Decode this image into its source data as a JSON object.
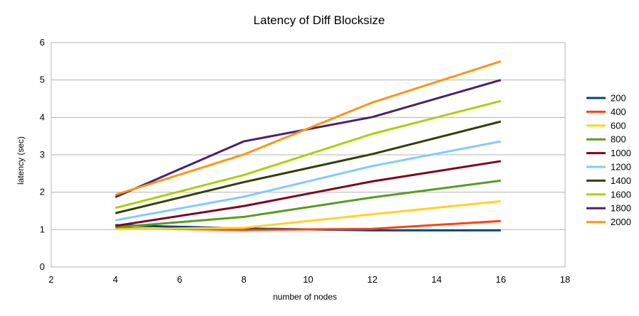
{
  "chart_data": {
    "type": "line",
    "title": "Latency of Diff Blocksize",
    "xlabel": "number of nodes",
    "ylabel": "latency (sec)",
    "xlim": [
      2,
      18
    ],
    "ylim": [
      0,
      6
    ],
    "x_ticks": [
      2,
      4,
      6,
      8,
      10,
      12,
      14,
      16,
      18
    ],
    "y_ticks": [
      0,
      1,
      2,
      3,
      4,
      5,
      6
    ],
    "grid": "horizontal",
    "legend_position": "right",
    "x": [
      4,
      8,
      12,
      16
    ],
    "series": [
      {
        "name": "200",
        "color": "#004586",
        "values": [
          1.12,
          1.03,
          0.98,
          0.98
        ]
      },
      {
        "name": "400",
        "color": "#ff420e",
        "values": [
          1.04,
          0.99,
          1.02,
          1.23
        ]
      },
      {
        "name": "600",
        "color": "#ffd320",
        "values": [
          1.01,
          1.05,
          1.41,
          1.76
        ]
      },
      {
        "name": "800",
        "color": "#579d1c",
        "values": [
          1.06,
          1.34,
          1.86,
          2.31
        ]
      },
      {
        "name": "1000",
        "color": "#7e0021",
        "values": [
          1.1,
          1.63,
          2.29,
          2.83
        ]
      },
      {
        "name": "1200",
        "color": "#83caff",
        "values": [
          1.25,
          1.88,
          2.7,
          3.36
        ]
      },
      {
        "name": "1400",
        "color": "#314004",
        "values": [
          1.44,
          2.27,
          3.02,
          3.89
        ]
      },
      {
        "name": "1600",
        "color": "#aecf00",
        "values": [
          1.58,
          2.46,
          3.56,
          4.44
        ]
      },
      {
        "name": "1800",
        "color": "#4b1f6f",
        "values": [
          1.87,
          3.36,
          4.01,
          5.0
        ]
      },
      {
        "name": "2000",
        "color": "#ff950e",
        "values": [
          1.93,
          3.01,
          4.4,
          5.5
        ]
      }
    ]
  }
}
